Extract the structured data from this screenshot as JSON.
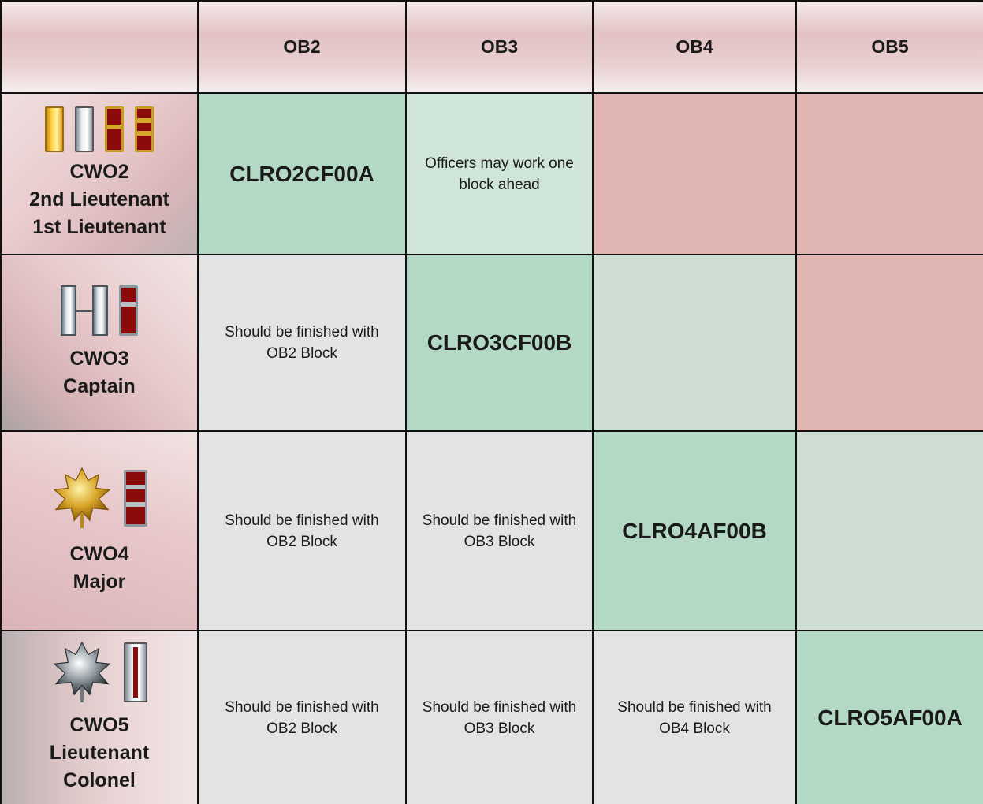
{
  "columns": [
    "OB2",
    "OB3",
    "OB4",
    "OB5"
  ],
  "rows": [
    {
      "rank_lines": [
        "CWO2",
        "2nd Lieutenant",
        "1st Lieutenant"
      ],
      "insignia": [
        "warrant-officer-1-gold-bar-icon",
        "silver-bar-icon",
        "cwo2-maroon-gold-bar-icon",
        "cwo3-maroon-gold-bar-icon"
      ],
      "cells": [
        "CLRO2CF00A",
        "Officers may work one block  ahead",
        "",
        ""
      ]
    },
    {
      "rank_lines": [
        "CWO3",
        "Captain"
      ],
      "insignia": [
        "captain-double-silver-bar-icon",
        "cwo4-maroon-silver-bar-icon"
      ],
      "cells": [
        "Should be finished with OB2 Block",
        "CLRO3CF00B",
        "",
        ""
      ]
    },
    {
      "rank_lines": [
        "CWO4",
        "Major"
      ],
      "insignia": [
        "gold-oak-leaf-icon",
        "cwo4-maroon-silver-bar-icon"
      ],
      "cells": [
        "Should be finished with OB2 Block",
        "Should be finished with OB3 Block",
        "CLRO4AF00B",
        ""
      ]
    },
    {
      "rank_lines": [
        "CWO5",
        "Lieutenant",
        "Colonel"
      ],
      "insignia": [
        "silver-oak-leaf-icon",
        "cwo5-silver-bar-red-stripe-icon"
      ],
      "cells": [
        "Should be finished with OB2 Block",
        "Should be finished with OB3 Block",
        "Should be finished with OB4 Block",
        "CLRO5AF00A"
      ]
    }
  ],
  "colors": {
    "current_block": "#b3d9c4",
    "ahead_allowed": "#cfe5d7",
    "not_yet": "#e0b5b2",
    "finished": "#e3e3e3"
  }
}
